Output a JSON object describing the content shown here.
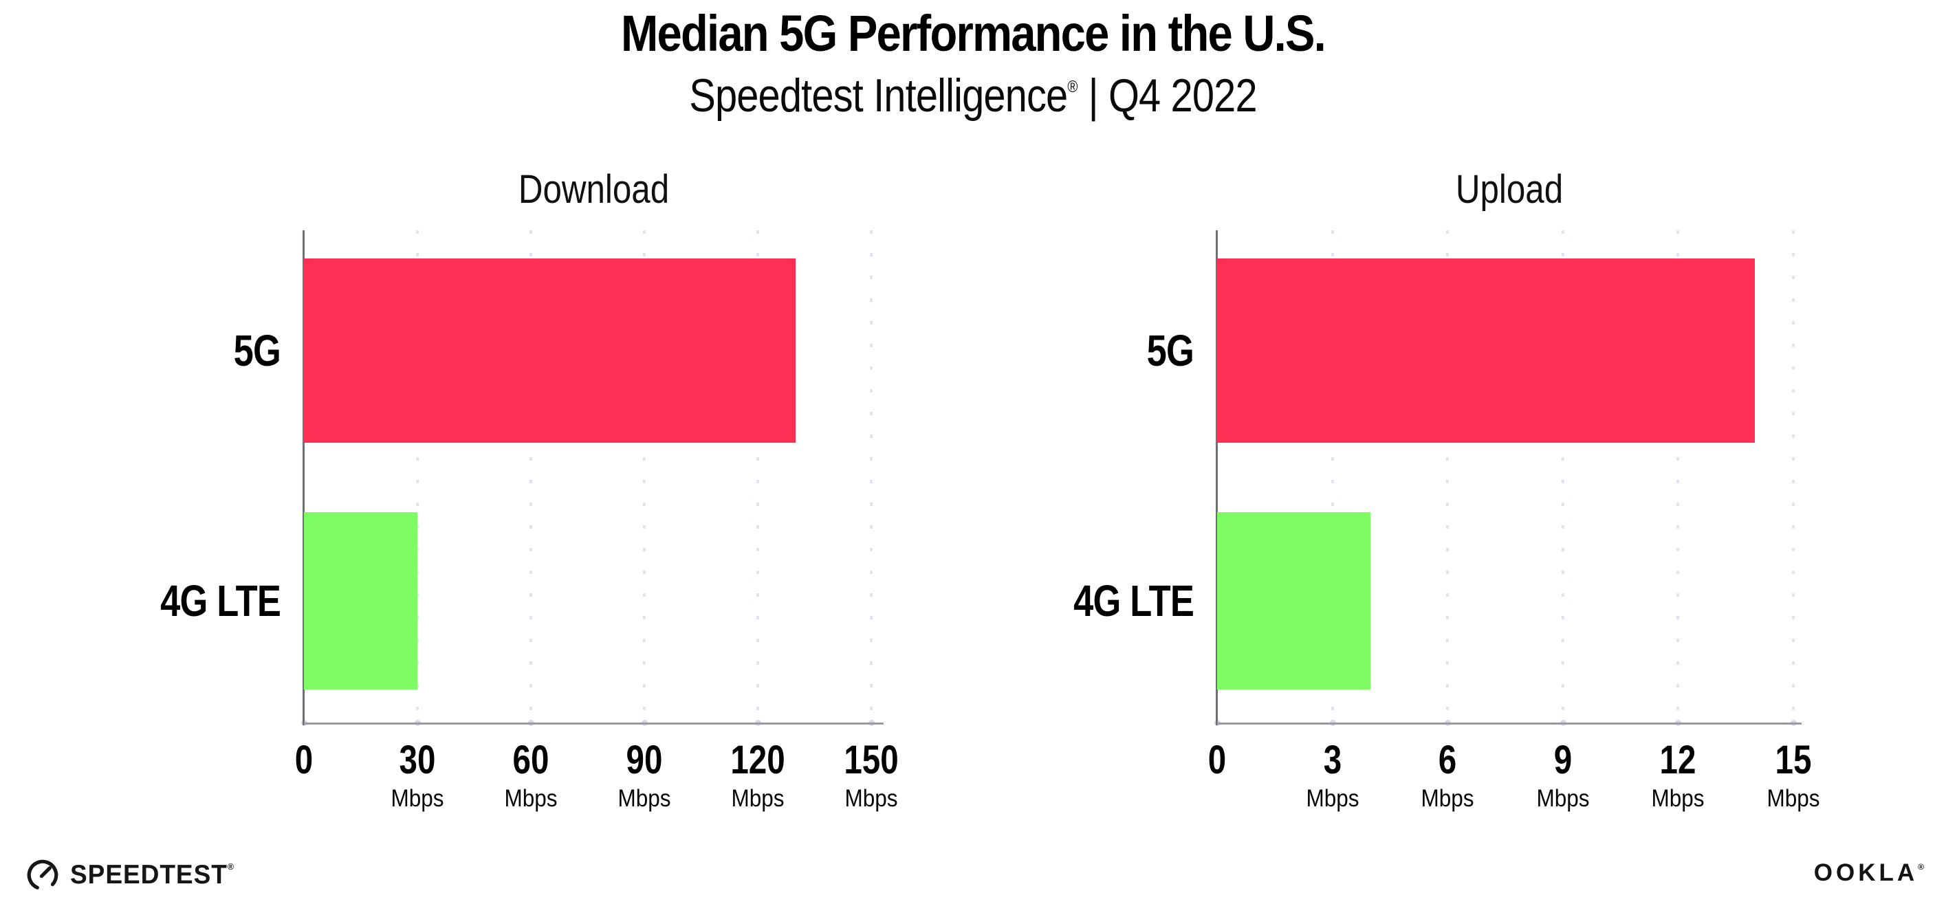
{
  "header": {
    "title": "Median 5G Performance in the U.S.",
    "subtitle_brand": "Speedtest Intelligence",
    "subtitle_reg": "®",
    "subtitle_rest": " | Q4 2022"
  },
  "colors": {
    "bar_5g": "#FF2E55",
    "bar_4g_lte": "#7EFC64",
    "gridline": "#E3E3EF",
    "axis_y": "#6F6F77",
    "axis_x": "#9A9AA1",
    "tick_dot": "#D9D9E6",
    "text": "#000000"
  },
  "chart_data": [
    {
      "type": "bar",
      "orientation": "horizontal",
      "title": "Download",
      "categories": [
        "5G",
        "4G LTE"
      ],
      "values": [
        130,
        30
      ],
      "unit": "Mbps",
      "xticks": [
        0,
        30,
        60,
        90,
        120,
        150
      ],
      "xtick_unit_label": "Mbps",
      "xlim": [
        0,
        153.3
      ],
      "grid": "dotted-vertical",
      "legend": "none",
      "bar_colors": [
        "#FF2E55",
        "#7EFC64"
      ]
    },
    {
      "type": "bar",
      "orientation": "horizontal",
      "title": "Upload",
      "categories": [
        "5G",
        "4G LTE"
      ],
      "values": [
        14,
        4
      ],
      "unit": "Mbps",
      "xticks": [
        0,
        3,
        6,
        9,
        12,
        15
      ],
      "xtick_unit_label": "Mbps",
      "xlim": [
        0,
        15.22
      ],
      "grid": "dotted-vertical",
      "legend": "none",
      "bar_colors": [
        "#FF2E55",
        "#7EFC64"
      ]
    }
  ],
  "footer": {
    "speedtest_label": "SPEEDTEST",
    "speedtest_mark": "®",
    "ookla_label": "OOKLA",
    "ookla_mark": "®"
  }
}
